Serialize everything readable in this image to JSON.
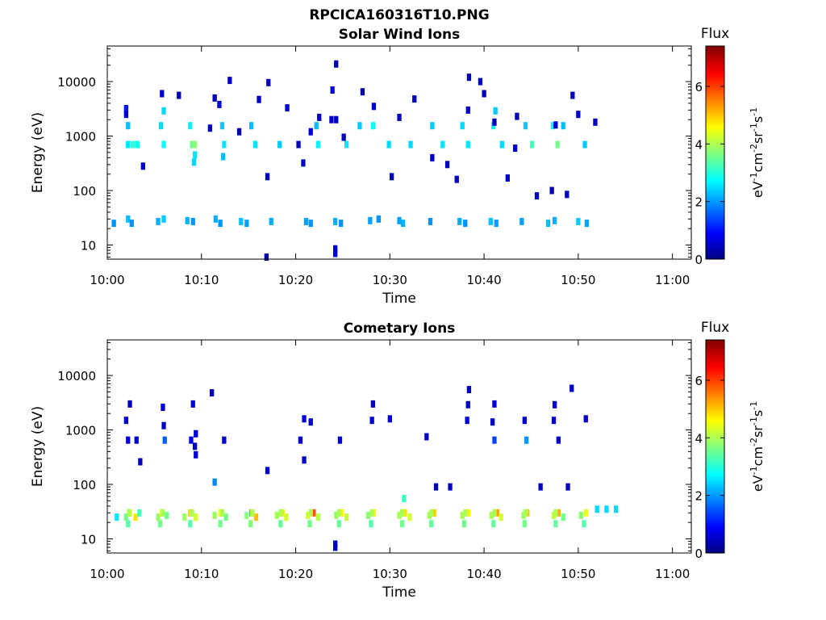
{
  "figure": {
    "title": "RPCICA160316T10.PNG"
  },
  "chart_data": [
    {
      "type": "heatmap",
      "title": "Solar Wind Ions",
      "xlabel": "Time",
      "ylabel": "Energy (eV)",
      "y_scale": "log",
      "xlim": [
        "10:00",
        "11:02"
      ],
      "ylim": [
        5.5,
        45000
      ],
      "x_ticks": [
        "10:00",
        "10:10",
        "10:20",
        "10:30",
        "10:40",
        "10:50",
        "11:00"
      ],
      "y_ticks": [
        "10",
        "100",
        "1000",
        "10000"
      ],
      "colorbar": {
        "label": "Flux",
        "unit": "eV-1cm-2sr-1s-1",
        "range": [
          0,
          7.4
        ],
        "ticks": [
          "0",
          "2",
          "4",
          "6"
        ],
        "colormap": "jet"
      },
      "x_units": "minutes after 10:00",
      "cells": [
        [
          2.2,
          1550,
          2.3
        ],
        [
          2.2,
          700,
          2.6
        ],
        [
          2.7,
          700,
          3.1
        ],
        [
          3.2,
          700,
          2.9
        ],
        [
          2.0,
          3200,
          1.1
        ],
        [
          5.7,
          1550,
          2.5
        ],
        [
          6.0,
          700,
          2.8
        ],
        [
          6.0,
          2900,
          2.5
        ],
        [
          8.8,
          1550,
          2.7
        ],
        [
          9.0,
          700,
          3.6
        ],
        [
          9.3,
          700,
          3.8
        ],
        [
          9.3,
          450,
          2.6
        ],
        [
          9.2,
          330,
          2.5
        ],
        [
          12.2,
          1550,
          2.4
        ],
        [
          12.4,
          700,
          2.6
        ],
        [
          12.3,
          420,
          2.3
        ],
        [
          15.3,
          1550,
          2.3
        ],
        [
          15.7,
          700,
          2.6
        ],
        [
          18.3,
          700,
          2.4
        ],
        [
          22.2,
          1550,
          2.3
        ],
        [
          22.4,
          700,
          2.7
        ],
        [
          25.4,
          700,
          2.6
        ],
        [
          26.8,
          1550,
          2.4
        ],
        [
          28.2,
          1550,
          2.8
        ],
        [
          29.9,
          700,
          2.5
        ],
        [
          32.2,
          700,
          2.5
        ],
        [
          34.5,
          1550,
          2.4
        ],
        [
          35.6,
          700,
          2.6
        ],
        [
          37.7,
          1550,
          2.5
        ],
        [
          38.3,
          700,
          2.6
        ],
        [
          41.0,
          1550,
          2.7
        ],
        [
          41.2,
          2900,
          2.4
        ],
        [
          41.9,
          700,
          2.5
        ],
        [
          44.4,
          1550,
          2.4
        ],
        [
          45.1,
          700,
          3.3
        ],
        [
          47.3,
          1550,
          2.8
        ],
        [
          47.8,
          700,
          3.6
        ],
        [
          48.4,
          1550,
          2.3
        ],
        [
          50.7,
          700,
          2.4
        ],
        [
          0.7,
          25,
          2.0
        ],
        [
          2.2,
          30,
          2.3
        ],
        [
          2.6,
          25,
          2.0
        ],
        [
          5.4,
          27,
          2.2
        ],
        [
          6.0,
          30,
          2.4
        ],
        [
          8.5,
          28,
          2.2
        ],
        [
          9.1,
          27,
          2.0
        ],
        [
          11.5,
          30,
          2.2
        ],
        [
          12.0,
          25,
          2.0
        ],
        [
          14.2,
          27,
          2.3
        ],
        [
          14.8,
          25,
          2.1
        ],
        [
          17.4,
          27,
          2.2
        ],
        [
          21.1,
          27,
          2.1
        ],
        [
          21.6,
          25,
          2.0
        ],
        [
          24.2,
          27,
          2.2
        ],
        [
          24.8,
          25,
          2.0
        ],
        [
          27.9,
          28,
          2.1
        ],
        [
          28.8,
          30,
          2.0
        ],
        [
          31.0,
          28,
          2.1
        ],
        [
          31.4,
          25,
          2.2
        ],
        [
          34.3,
          27,
          2.0
        ],
        [
          37.4,
          27,
          2.2
        ],
        [
          38.0,
          25,
          2.0
        ],
        [
          40.7,
          27,
          2.3
        ],
        [
          41.3,
          25,
          2.1
        ],
        [
          44.0,
          27,
          2.1
        ],
        [
          46.8,
          25,
          2.3
        ],
        [
          47.5,
          28,
          2.2
        ],
        [
          50.0,
          27,
          2.4
        ],
        [
          50.9,
          25,
          2.1
        ],
        [
          2.0,
          2500,
          0.7
        ],
        [
          3.8,
          280,
          0.6
        ],
        [
          5.8,
          6000,
          0.5
        ],
        [
          7.6,
          5600,
          0.4
        ],
        [
          10.9,
          1400,
          0.5
        ],
        [
          11.4,
          5000,
          0.4
        ],
        [
          11.9,
          3800,
          0.6
        ],
        [
          13.0,
          10500,
          0.5
        ],
        [
          14.0,
          1200,
          0.5
        ],
        [
          16.1,
          4700,
          0.5
        ],
        [
          16.9,
          6.0,
          0.3
        ],
        [
          17.0,
          180,
          0.5
        ],
        [
          17.1,
          9600,
          0.4
        ],
        [
          19.1,
          3300,
          0.6
        ],
        [
          20.8,
          320,
          0.5
        ],
        [
          21.6,
          1200,
          0.6
        ],
        [
          22.5,
          2200,
          0.4
        ],
        [
          23.8,
          2000,
          0.5
        ],
        [
          23.9,
          7000,
          0.6
        ],
        [
          24.3,
          21000,
          0.3
        ],
        [
          24.3,
          2000,
          0.5
        ],
        [
          25.1,
          950,
          0.4
        ],
        [
          27.1,
          6500,
          0.3
        ],
        [
          28.3,
          3500,
          0.6
        ],
        [
          30.2,
          180,
          0.6
        ],
        [
          31.0,
          2200,
          0.4
        ],
        [
          32.6,
          4800,
          0.5
        ],
        [
          34.5,
          400,
          0.5
        ],
        [
          36.1,
          300,
          0.4
        ],
        [
          37.1,
          160,
          0.5
        ],
        [
          38.3,
          3000,
          0.6
        ],
        [
          38.4,
          12000,
          0.4
        ],
        [
          39.6,
          10000,
          0.5
        ],
        [
          40.0,
          6000,
          0.5
        ],
        [
          41.1,
          1800,
          0.4
        ],
        [
          42.5,
          170,
          0.6
        ],
        [
          43.3,
          600,
          0.5
        ],
        [
          43.5,
          2300,
          0.4
        ],
        [
          45.6,
          80,
          0.5
        ],
        [
          47.2,
          100,
          0.4
        ],
        [
          47.6,
          1600,
          0.6
        ],
        [
          48.8,
          85,
          0.5
        ],
        [
          49.4,
          5600,
          0.4
        ],
        [
          50.0,
          2500,
          0.5
        ],
        [
          51.8,
          1800,
          0.5
        ],
        [
          24.2,
          8.5,
          0.6
        ],
        [
          24.2,
          7.0,
          0.6
        ],
        [
          20.3,
          700,
          0.4
        ]
      ]
    },
    {
      "type": "heatmap",
      "title": "Cometary Ions",
      "xlabel": "Time",
      "ylabel": "Energy (eV)",
      "y_scale": "log",
      "xlim": [
        "10:00",
        "11:02"
      ],
      "ylim": [
        5.5,
        45000
      ],
      "x_ticks": [
        "10:00",
        "10:10",
        "10:20",
        "10:30",
        "10:40",
        "10:50",
        "11:00"
      ],
      "y_ticks": [
        "10",
        "100",
        "1000",
        "10000"
      ],
      "colorbar": {
        "label": "Flux",
        "unit": "eV-1cm-2sr-1s-1",
        "range": [
          0,
          7.4
        ],
        "ticks": [
          "0",
          "2",
          "4",
          "6"
        ],
        "colormap": "jet"
      },
      "x_units": "minutes after 10:00",
      "cells": [
        [
          1.0,
          25,
          2.6
        ],
        [
          2.0,
          25,
          3.6
        ],
        [
          2.4,
          30,
          4.4
        ],
        [
          3.0,
          25,
          4.8
        ],
        [
          3.4,
          30,
          3.3
        ],
        [
          5.4,
          25,
          3.9
        ],
        [
          5.8,
          30,
          4.5
        ],
        [
          6.3,
          27,
          3.6
        ],
        [
          8.2,
          25,
          3.9
        ],
        [
          8.8,
          30,
          4.9
        ],
        [
          9.4,
          25,
          4.3
        ],
        [
          11.4,
          27,
          3.9
        ],
        [
          12.0,
          30,
          4.6
        ],
        [
          12.6,
          25,
          3.6
        ],
        [
          14.8,
          27,
          3.8
        ],
        [
          15.3,
          30,
          5.4
        ],
        [
          15.8,
          25,
          5.1
        ],
        [
          18.0,
          27,
          4.0
        ],
        [
          18.6,
          30,
          4.8
        ],
        [
          19.0,
          25,
          4.3
        ],
        [
          21.3,
          27,
          4.3
        ],
        [
          21.9,
          30,
          5.9
        ],
        [
          22.4,
          25,
          4.1
        ],
        [
          24.3,
          27,
          3.9
        ],
        [
          24.9,
          30,
          4.7
        ],
        [
          25.4,
          25,
          4.2
        ],
        [
          27.7,
          27,
          3.8
        ],
        [
          28.3,
          30,
          4.6
        ],
        [
          31.0,
          27,
          4.0
        ],
        [
          31.6,
          30,
          4.8
        ],
        [
          31.5,
          55,
          3.2
        ],
        [
          32.1,
          25,
          4.3
        ],
        [
          34.2,
          27,
          4.0
        ],
        [
          34.7,
          30,
          5.0
        ],
        [
          37.7,
          27,
          4.0
        ],
        [
          38.3,
          30,
          4.7
        ],
        [
          40.8,
          27,
          4.0
        ],
        [
          41.4,
          30,
          5.3
        ],
        [
          41.8,
          25,
          4.3
        ],
        [
          44.2,
          27,
          3.9
        ],
        [
          44.6,
          30,
          5.0
        ],
        [
          47.4,
          27,
          4.2
        ],
        [
          47.9,
          30,
          5.2
        ],
        [
          48.4,
          25,
          3.6
        ],
        [
          50.3,
          27,
          3.8
        ],
        [
          50.8,
          30,
          4.4
        ],
        [
          52.0,
          35,
          2.5
        ],
        [
          53.0,
          35,
          2.5
        ],
        [
          54.0,
          35,
          2.5
        ],
        [
          2.3,
          30,
          4.0
        ],
        [
          5.9,
          30,
          4.0
        ],
        [
          9.0,
          30,
          4.0
        ],
        [
          12.2,
          30,
          4.0
        ],
        [
          15.4,
          30,
          4.0
        ],
        [
          18.4,
          30,
          4.0
        ],
        [
          21.6,
          30,
          4.0
        ],
        [
          24.6,
          30,
          4.0
        ],
        [
          28.1,
          30,
          4.0
        ],
        [
          31.3,
          30,
          4.0
        ],
        [
          34.4,
          30,
          4.0
        ],
        [
          38.0,
          30,
          4.0
        ],
        [
          41.1,
          30,
          4.0
        ],
        [
          44.4,
          30,
          4.0
        ],
        [
          47.6,
          30,
          4.0
        ],
        [
          2.2,
          19,
          3.4
        ],
        [
          5.6,
          19,
          3.6
        ],
        [
          8.8,
          19,
          3.4
        ],
        [
          12.0,
          19,
          3.6
        ],
        [
          15.2,
          19,
          3.7
        ],
        [
          18.4,
          19,
          3.5
        ],
        [
          21.5,
          19,
          3.6
        ],
        [
          24.6,
          19,
          3.5
        ],
        [
          28.0,
          19,
          3.4
        ],
        [
          31.3,
          19,
          3.6
        ],
        [
          34.4,
          19,
          3.5
        ],
        [
          37.9,
          19,
          3.6
        ],
        [
          41.0,
          19,
          3.5
        ],
        [
          44.3,
          19,
          3.6
        ],
        [
          47.6,
          19,
          3.5
        ],
        [
          50.6,
          19,
          3.4
        ],
        [
          2.0,
          1500,
          0.6
        ],
        [
          2.2,
          650,
          0.7
        ],
        [
          2.4,
          3000,
          0.5
        ],
        [
          3.1,
          650,
          0.6
        ],
        [
          3.5,
          260,
          0.5
        ],
        [
          5.9,
          2600,
          0.6
        ],
        [
          6.0,
          1200,
          0.5
        ],
        [
          6.1,
          650,
          1.6
        ],
        [
          8.9,
          650,
          0.7
        ],
        [
          9.1,
          3000,
          0.6
        ],
        [
          9.3,
          500,
          0.5
        ],
        [
          9.4,
          350,
          0.6
        ],
        [
          9.4,
          850,
          0.6
        ],
        [
          11.1,
          4800,
          0.4
        ],
        [
          11.4,
          110,
          1.9
        ],
        [
          12.4,
          650,
          0.6
        ],
        [
          17.0,
          180,
          0.5
        ],
        [
          20.5,
          650,
          0.6
        ],
        [
          20.9,
          1600,
          0.6
        ],
        [
          20.9,
          280,
          0.5
        ],
        [
          21.6,
          1400,
          0.5
        ],
        [
          24.7,
          650,
          0.6
        ],
        [
          28.1,
          1500,
          0.6
        ],
        [
          28.2,
          3000,
          0.5
        ],
        [
          30.0,
          1600,
          0.6
        ],
        [
          33.9,
          750,
          0.5
        ],
        [
          34.9,
          90,
          0.5
        ],
        [
          36.4,
          90,
          0.5
        ],
        [
          38.2,
          1500,
          0.6
        ],
        [
          38.3,
          2900,
          0.5
        ],
        [
          38.4,
          5500,
          0.5
        ],
        [
          40.9,
          1400,
          0.5
        ],
        [
          41.1,
          3000,
          0.6
        ],
        [
          41.1,
          650,
          1.4
        ],
        [
          44.3,
          1500,
          0.6
        ],
        [
          44.5,
          650,
          2.0
        ],
        [
          46.0,
          90,
          0.5
        ],
        [
          47.4,
          1500,
          0.6
        ],
        [
          47.5,
          2900,
          0.5
        ],
        [
          47.9,
          650,
          0.6
        ],
        [
          48.9,
          90,
          0.5
        ],
        [
          49.3,
          5800,
          0.5
        ],
        [
          50.8,
          1600,
          0.5
        ],
        [
          24.2,
          8.0,
          0.5
        ],
        [
          24.2,
          7.0,
          0.5
        ]
      ]
    }
  ]
}
